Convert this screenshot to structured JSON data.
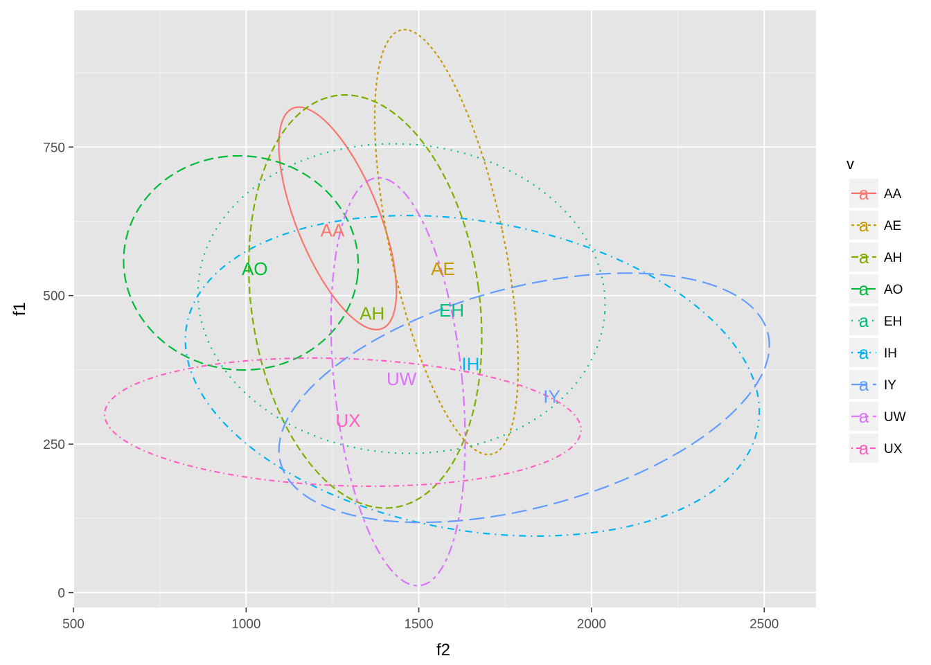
{
  "chart_data": {
    "type": "scatter",
    "title": "",
    "xlabel": "f2",
    "ylabel": "f1",
    "xlim": [
      500,
      2650
    ],
    "ylim": [
      -25,
      980
    ],
    "x_ticks": [
      500,
      1000,
      1500,
      2000,
      2500
    ],
    "y_ticks": [
      0,
      250,
      500,
      750
    ],
    "x_tick_labels": [
      "500",
      "1000",
      "1500",
      "2000",
      "2500"
    ],
    "y_tick_labels": [
      "0",
      "250",
      "500",
      "750"
    ],
    "grid": true,
    "background": "#e5e5e5",
    "legend": {
      "title": "v",
      "position": "right",
      "glyph": "a"
    },
    "series": [
      {
        "name": "AA",
        "color": "#f8766d",
        "dash": "solid",
        "label": {
          "x": 1250,
          "y": 610
        },
        "ellipse": {
          "cx": 1265,
          "cy": 630,
          "rx_data": 120,
          "ry_data": 200,
          "angle_deg": 22
        }
      },
      {
        "name": "AE",
        "color": "#c49a00",
        "dash": "shortdash",
        "label": {
          "x": 1570,
          "y": 545
        },
        "ellipse": {
          "cx": 1580,
          "cy": 590,
          "rx_data": 165,
          "ry_data": 365,
          "angle_deg": 12
        }
      },
      {
        "name": "AH",
        "color": "#7cae00",
        "dash": "dashed",
        "label": {
          "x": 1365,
          "y": 470
        },
        "ellipse": {
          "cx": 1345,
          "cy": 490,
          "rx_data": 330,
          "ry_data": 350,
          "angle_deg": 8
        }
      },
      {
        "name": "AO",
        "color": "#00ba38",
        "dash": "longdash",
        "label": {
          "x": 1025,
          "y": 545
        },
        "ellipse": {
          "cx": 985,
          "cy": 555,
          "rx_data": 340,
          "ry_data": 180,
          "angle_deg": -6
        }
      },
      {
        "name": "EH",
        "color": "#00bf7d",
        "dash": "dotted",
        "label": {
          "x": 1595,
          "y": 475
        },
        "ellipse": {
          "cx": 1450,
          "cy": 495,
          "rx_data": 590,
          "ry_data": 260,
          "angle_deg": -4
        }
      },
      {
        "name": "IH",
        "color": "#00b4f0",
        "dash": "dotdash",
        "label": {
          "x": 1650,
          "y": 385
        },
        "ellipse": {
          "cx": 1655,
          "cy": 365,
          "rx_data": 840,
          "ry_data": 260,
          "angle_deg": -10
        }
      },
      {
        "name": "IY",
        "color": "#619cff",
        "dash": "longdash2",
        "label": {
          "x": 1885,
          "y": 330
        },
        "ellipse": {
          "cx": 1805,
          "cy": 328,
          "rx_data": 730,
          "ry_data": 185,
          "angle_deg": 15
        }
      },
      {
        "name": "UW",
        "color": "#db72fb",
        "dash": "twodash",
        "label": {
          "x": 1450,
          "y": 360
        },
        "ellipse": {
          "cx": 1440,
          "cy": 355,
          "rx_data": 185,
          "ry_data": 345,
          "angle_deg": 6
        }
      },
      {
        "name": "UX",
        "color": "#ff61c3",
        "dash": "dashdot",
        "label": {
          "x": 1295,
          "y": 290
        },
        "ellipse": {
          "cx": 1280,
          "cy": 287,
          "rx_data": 690,
          "ry_data": 107,
          "angle_deg": -2
        }
      }
    ]
  }
}
